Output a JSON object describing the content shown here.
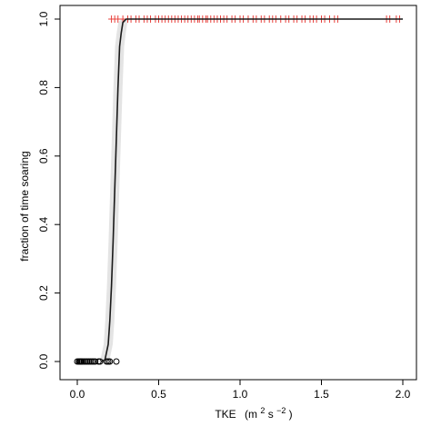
{
  "chart_data": {
    "type": "scatter",
    "xlabel_main": "TKE",
    "xlabel_unit_open": "(m",
    "xlabel_unit_sup1": "2",
    "xlabel_unit_mid": " s",
    "xlabel_unit_sup2": "−2",
    "xlabel_unit_close": ")",
    "ylabel": "fraction of time soaring",
    "xlim": [
      0,
      2.0
    ],
    "ylim": [
      0,
      1.0
    ],
    "x_ticks": [
      0.0,
      0.5,
      1.0,
      1.5,
      2.0
    ],
    "x_tick_labels": [
      "0.0",
      "0.5",
      "1.0",
      "1.5",
      "2.0"
    ],
    "y_ticks": [
      0.0,
      0.2,
      0.4,
      0.6,
      0.8,
      1.0
    ],
    "y_tick_labels": [
      "0.0",
      "0.2",
      "0.4",
      "0.6",
      "0.8",
      "1.0"
    ],
    "colors": {
      "soaring": "#e8413c",
      "not_soaring": "#000000",
      "fit": "#1a1a1a",
      "ci": "#d8d8d8"
    },
    "series": [
      {
        "kind": "not-soaring-points",
        "marker": "circle",
        "x": [
          0.0,
          0.01,
          0.015,
          0.02,
          0.025,
          0.03,
          0.04,
          0.05,
          0.06,
          0.07,
          0.08,
          0.09,
          0.1,
          0.11,
          0.13,
          0.14,
          0.18,
          0.19,
          0.2,
          0.24
        ],
        "y": [
          0,
          0,
          0,
          0,
          0,
          0,
          0,
          0,
          0,
          0,
          0,
          0,
          0,
          0,
          0,
          0,
          0,
          0,
          0,
          0
        ]
      },
      {
        "kind": "soaring-points",
        "marker": "plus",
        "x": [
          0.21,
          0.23,
          0.25,
          0.28,
          0.31,
          0.33,
          0.36,
          0.38,
          0.41,
          0.43,
          0.45,
          0.48,
          0.5,
          0.52,
          0.54,
          0.56,
          0.58,
          0.6,
          0.62,
          0.64,
          0.66,
          0.68,
          0.7,
          0.72,
          0.74,
          0.75,
          0.77,
          0.79,
          0.8,
          0.82,
          0.84,
          0.86,
          0.88,
          0.9,
          0.92,
          0.95,
          0.97,
          1.0,
          1.02,
          1.05,
          1.08,
          1.1,
          1.13,
          1.15,
          1.18,
          1.2,
          1.22,
          1.25,
          1.28,
          1.3,
          1.33,
          1.35,
          1.38,
          1.4,
          1.43,
          1.45,
          1.47,
          1.5,
          1.52,
          1.55,
          1.58,
          1.6,
          1.9,
          1.92,
          1.96,
          1.98
        ],
        "y": [
          1,
          1,
          1,
          1,
          1,
          1,
          1,
          1,
          1,
          1,
          1,
          1,
          1,
          1,
          1,
          1,
          1,
          1,
          1,
          1,
          1,
          1,
          1,
          1,
          1,
          1,
          1,
          1,
          1,
          1,
          1,
          1,
          1,
          1,
          1,
          1,
          1,
          1,
          1,
          1,
          1,
          1,
          1,
          1,
          1,
          1,
          1,
          1,
          1,
          1,
          1,
          1,
          1,
          1,
          1,
          1,
          1,
          1,
          1,
          1,
          1,
          1,
          1,
          1,
          1,
          1
        ]
      },
      {
        "kind": "fitted-curve",
        "x": [
          0.15,
          0.17,
          0.19,
          0.2,
          0.21,
          0.22,
          0.23,
          0.24,
          0.25,
          0.26,
          0.27,
          0.28,
          0.3,
          0.35,
          0.5,
          1.0,
          1.6,
          2.0
        ],
        "y": [
          0.0,
          0.005,
          0.05,
          0.12,
          0.22,
          0.35,
          0.5,
          0.65,
          0.8,
          0.92,
          0.96,
          0.99,
          1.0,
          1.0,
          1.0,
          1.0,
          1.0,
          1.0
        ]
      }
    ]
  }
}
